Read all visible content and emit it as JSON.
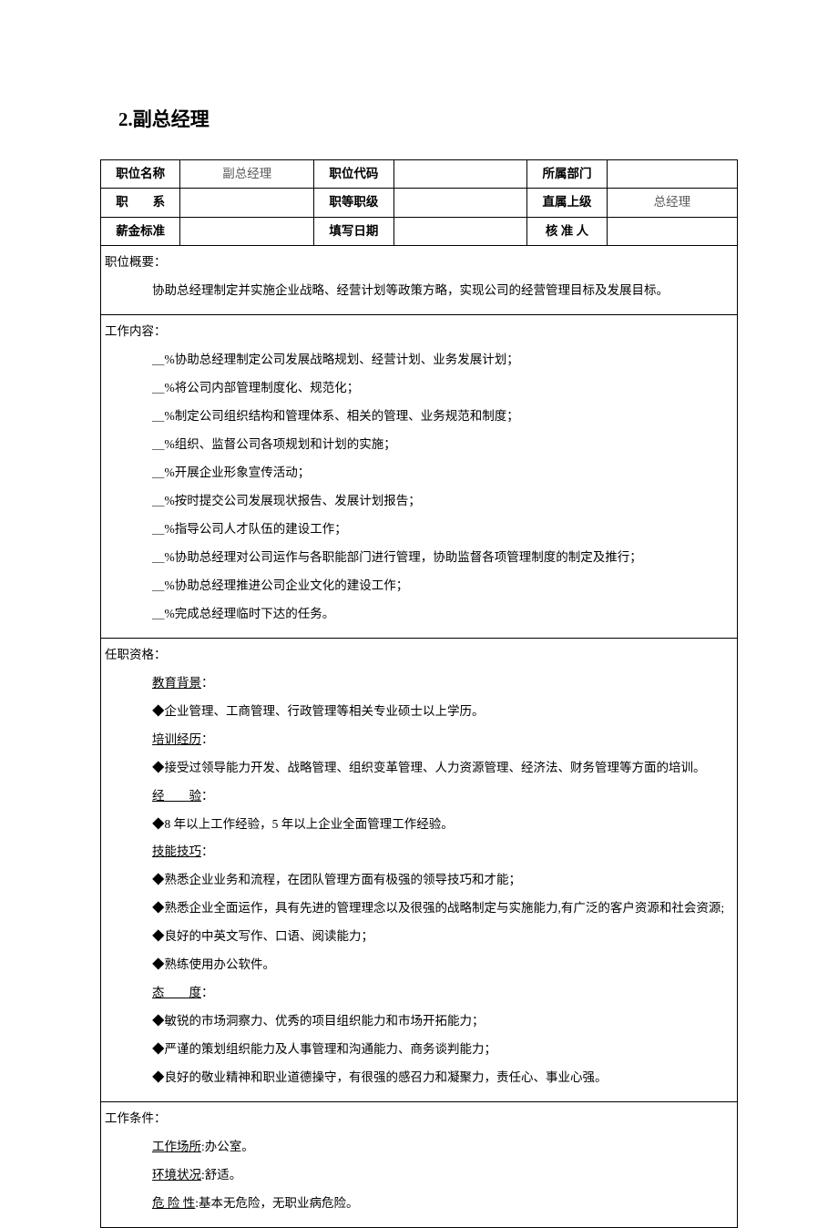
{
  "heading": "2.副总经理",
  "header": {
    "row1": {
      "c1_label": "职位名称",
      "c1_value": "副总经理",
      "c2_label": "职位代码",
      "c2_value": "",
      "c3_label": "所属部门",
      "c3_value": ""
    },
    "row2": {
      "c1_label": "职　　系",
      "c1_value": "",
      "c2_label": "职等职级",
      "c2_value": "",
      "c3_label": "直属上级",
      "c3_value": "总经理"
    },
    "row3": {
      "c1_label": "薪金标准",
      "c1_value": "",
      "c2_label": "填写日期",
      "c2_value": "",
      "c3_label": "核 准 人",
      "c3_value": ""
    }
  },
  "summary": {
    "title": "职位概要：",
    "text": "协助总经理制定并实施企业战略、经营计划等政策方略，实现公司的经营管理目标及发展目标。"
  },
  "content": {
    "title": "工作内容：",
    "items": [
      "＿%协助总经理制定公司发展战略规划、经营计划、业务发展计划；",
      "＿%将公司内部管理制度化、规范化；",
      "＿%制定公司组织结构和管理体系、相关的管理、业务规范和制度；",
      "＿%组织、监督公司各项规划和计划的实施；",
      "＿%开展企业形象宣传活动；",
      "＿%按时提交公司发展现状报告、发展计划报告；",
      "＿%指导公司人才队伍的建设工作；",
      "＿%协助总经理对公司运作与各职能部门进行管理，协助监督各项管理制度的制定及推行；",
      "＿%协助总经理推进公司企业文化的建设工作；",
      "＿%完成总经理临时下达的任务。"
    ]
  },
  "qualifications": {
    "title": "任职资格：",
    "groups": [
      {
        "subtitle": "教育背景：",
        "items": [
          "◆企业管理、工商管理、行政管理等相关专业硕士以上学历。"
        ]
      },
      {
        "subtitle": "培训经历：",
        "items": [
          "◆接受过领导能力开发、战略管理、组织变革管理、人力资源管理、经济法、财务管理等方面的培训。"
        ]
      },
      {
        "subtitle": "经　　验：",
        "items": [
          "◆8 年以上工作经验，5 年以上企业全面管理工作经验。"
        ]
      },
      {
        "subtitle": "技能技巧：",
        "items": [
          "◆熟悉企业业务和流程，在团队管理方面有极强的领导技巧和才能；",
          "◆熟悉企业全面运作，具有先进的管理理念以及很强的战略制定与实施能力,有广泛的客户资源和社会资源;",
          "◆良好的中英文写作、口语、阅读能力；",
          "◆熟练使用办公软件。"
        ]
      },
      {
        "subtitle": "态　　度：",
        "items": [
          "◆敏锐的市场洞察力、优秀的项目组织能力和市场开拓能力；",
          "◆严谨的策划组织能力及人事管理和沟通能力、商务谈判能力；",
          "◆良好的敬业精神和职业道德操守，有很强的感召力和凝聚力，责任心、事业心强。"
        ]
      }
    ]
  },
  "conditions": {
    "title": "工作条件：",
    "items": [
      {
        "label": "工作场所",
        "text": ":办公室。"
      },
      {
        "label": "环境状况",
        "text": ":舒适。"
      },
      {
        "label": "危 险 性",
        "text": ":基本无危险，无职业病危险。"
      }
    ]
  },
  "layout": {
    "col_widths": [
      "12.5%",
      "21%",
      "12.5%",
      "21%",
      "12.5%",
      "20.5%"
    ]
  }
}
